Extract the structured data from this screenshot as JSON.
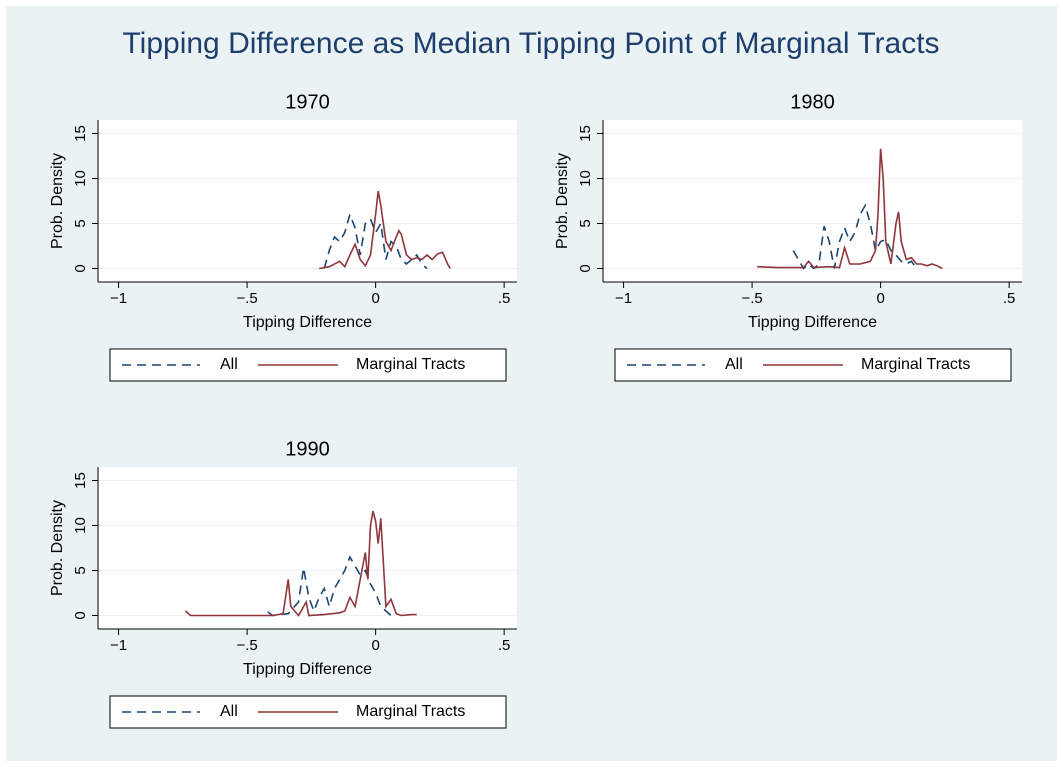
{
  "title": "Tipping Difference as Median Tipping Point of Marginal Tracts",
  "chart_data": [
    {
      "type": "line",
      "title": "1970",
      "xlabel": "Tipping Difference",
      "ylabel": "Prob. Density",
      "xlim": [
        -1.08,
        0.55
      ],
      "ylim": [
        -1.5,
        16.5
      ],
      "xticks": [
        {
          "value": -1,
          "label": "−1"
        },
        {
          "value": -0.5,
          "label": "−.5"
        },
        0,
        {
          "value": 0.5,
          "label": ".5"
        }
      ],
      "yticks": [
        0,
        5,
        10,
        15
      ],
      "grid": true,
      "series": [
        {
          "name": "All",
          "color": "#1a476f",
          "dashed": true,
          "x": [
            -0.2,
            -0.18,
            -0.16,
            -0.14,
            -0.12,
            -0.1,
            -0.08,
            -0.06,
            -0.04,
            -0.02,
            0,
            0.02,
            0.04,
            0.06,
            0.08,
            0.1,
            0.12,
            0.14,
            0.16,
            0.18,
            0.2
          ],
          "values": [
            0,
            2,
            3.5,
            3,
            4,
            6,
            4.5,
            1.5,
            5,
            5.5,
            4,
            5,
            1,
            3,
            2.5,
            1,
            0.5,
            1,
            1.5,
            0.5,
            0
          ]
        },
        {
          "name": "Marginal Tracts",
          "color": "#90353b",
          "dashed": false,
          "x": [
            -0.22,
            -0.18,
            -0.14,
            -0.12,
            -0.1,
            -0.08,
            -0.06,
            -0.04,
            -0.02,
            0,
            0.01,
            0.02,
            0.04,
            0.06,
            0.08,
            0.09,
            0.1,
            0.12,
            0.14,
            0.16,
            0.18,
            0.2,
            0.22,
            0.24,
            0.26,
            0.28,
            0.29
          ],
          "values": [
            0,
            0.2,
            0.8,
            0.2,
            1.5,
            2.7,
            1,
            0.3,
            1.5,
            6,
            8.6,
            7,
            3,
            2,
            3.5,
            4.2,
            3.8,
            1.5,
            1,
            1.2,
            1,
            1.5,
            1,
            1.6,
            1.8,
            0.5,
            0
          ]
        }
      ]
    },
    {
      "type": "line",
      "title": "1980",
      "xlabel": "Tipping Difference",
      "ylabel": "Prob. Density",
      "xlim": [
        -1.08,
        0.55
      ],
      "ylim": [
        -1.5,
        16.5
      ],
      "xticks": [
        {
          "value": -1,
          "label": "−1"
        },
        {
          "value": -0.5,
          "label": "−.5"
        },
        0,
        {
          "value": 0.5,
          "label": ".5"
        }
      ],
      "yticks": [
        0,
        5,
        10,
        15
      ],
      "grid": true,
      "series": [
        {
          "name": "All",
          "color": "#1a476f",
          "dashed": true,
          "x": [
            -0.34,
            -0.32,
            -0.3,
            -0.28,
            -0.26,
            -0.24,
            -0.22,
            -0.2,
            -0.18,
            -0.16,
            -0.14,
            -0.12,
            -0.1,
            -0.08,
            -0.06,
            -0.04,
            -0.02,
            0,
            0.02,
            0.04,
            0.06,
            0.08,
            0.1,
            0.12,
            0.14
          ],
          "values": [
            2,
            1,
            0,
            0.5,
            0,
            0.5,
            4.7,
            3,
            0,
            3,
            4.5,
            3,
            4,
            6,
            7,
            5,
            2,
            3,
            3.2,
            2,
            1.5,
            0.8,
            0.5,
            0.8,
            0
          ]
        },
        {
          "name": "Marginal Tracts",
          "color": "#90353b",
          "dashed": false,
          "x": [
            -0.48,
            -0.4,
            -0.3,
            -0.28,
            -0.26,
            -0.2,
            -0.16,
            -0.14,
            -0.12,
            -0.08,
            -0.04,
            -0.02,
            -0.01,
            0,
            0.01,
            0.02,
            0.04,
            0.06,
            0.07,
            0.08,
            0.1,
            0.12,
            0.14,
            0.16,
            0.18,
            0.2,
            0.22,
            0.24
          ],
          "values": [
            0.2,
            0.1,
            0.1,
            0.8,
            0.1,
            0.2,
            0.1,
            2.3,
            0.5,
            0.5,
            0.8,
            2,
            6,
            13.3,
            10,
            3,
            0.5,
            5,
            6.3,
            3,
            1,
            1.2,
            0.5,
            0.5,
            0.3,
            0.5,
            0.3,
            0
          ]
        }
      ]
    },
    {
      "type": "line",
      "title": "1990",
      "xlabel": "Tipping Difference",
      "ylabel": "Prob. Density",
      "xlim": [
        -1.08,
        0.55
      ],
      "ylim": [
        -1.5,
        16.5
      ],
      "xticks": [
        {
          "value": -1,
          "label": "−1"
        },
        {
          "value": -0.5,
          "label": "−.5"
        },
        0,
        {
          "value": 0.5,
          "label": ".5"
        }
      ],
      "yticks": [
        0,
        5,
        10,
        15
      ],
      "grid": true,
      "series": [
        {
          "name": "All",
          "color": "#1a476f",
          "dashed": true,
          "x": [
            -0.42,
            -0.4,
            -0.34,
            -0.3,
            -0.28,
            -0.26,
            -0.24,
            -0.22,
            -0.2,
            -0.18,
            -0.16,
            -0.14,
            -0.12,
            -0.1,
            -0.08,
            -0.06,
            -0.04,
            -0.02,
            0,
            0.02,
            0.04,
            0.06
          ],
          "values": [
            0.4,
            0,
            0.2,
            1.5,
            5.3,
            2,
            0.5,
            2,
            3,
            1,
            3,
            4,
            5,
            6.5,
            5.5,
            4.5,
            5,
            3.5,
            2.5,
            1,
            0.5,
            0
          ]
        },
        {
          "name": "Marginal Tracts",
          "color": "#90353b",
          "dashed": false,
          "x": [
            -0.74,
            -0.72,
            -0.4,
            -0.36,
            -0.34,
            -0.33,
            -0.3,
            -0.27,
            -0.26,
            -0.2,
            -0.14,
            -0.12,
            -0.1,
            -0.08,
            -0.06,
            -0.04,
            -0.03,
            -0.02,
            -0.01,
            0,
            0.01,
            0.02,
            0.03,
            0.04,
            0.06,
            0.08,
            0.1,
            0.14,
            0.16
          ],
          "values": [
            0.5,
            0,
            0,
            0.2,
            4,
            1,
            0,
            1.5,
            0,
            0.1,
            0.3,
            0.5,
            2,
            1,
            4,
            7,
            4,
            10,
            11.6,
            10.5,
            8,
            10.8,
            6,
            1,
            1.8,
            0.2,
            0,
            0.1,
            0.1
          ]
        }
      ]
    }
  ]
}
